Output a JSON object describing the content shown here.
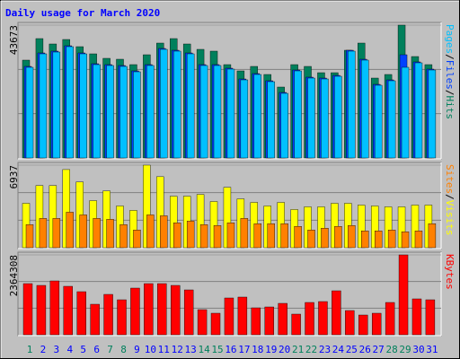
{
  "title": "Daily usage for March 2020",
  "chart_data": [
    {
      "type": "bar",
      "legend_separator": "/",
      "ylim": [
        0,
        43673
      ],
      "yticks": [
        43673
      ],
      "series": [
        {
          "name": "Hits",
          "color": "#00805c",
          "values": [
            32166,
            39248,
            37477,
            38953,
            36591,
            34231,
            32756,
            32461,
            30690,
            33936,
            37772,
            39248,
            37477,
            35707,
            35117,
            30690,
            28624,
            30100,
            27444,
            23313,
            30690,
            30100,
            28034,
            28034,
            35412,
            37772,
            26263,
            27444,
            43673,
            33346,
            30690
          ]
        },
        {
          "name": "Files",
          "color": "#0040ff",
          "values": [
            30100,
            34526,
            35117,
            36886,
            34526,
            30985,
            30690,
            30395,
            28624,
            30690,
            36002,
            35412,
            34526,
            30690,
            30690,
            29510,
            25968,
            27739,
            25378,
            21542,
            28919,
            26558,
            26263,
            27149,
            35412,
            32461,
            24198,
            25673,
            33936,
            31575,
            29214
          ]
        },
        {
          "name": "Pages",
          "color": "#00c0ff",
          "values": [
            29805,
            34231,
            34821,
            36591,
            34231,
            30690,
            30395,
            30100,
            28329,
            30395,
            35707,
            35117,
            34231,
            30395,
            30395,
            29214,
            25673,
            27444,
            25083,
            21247,
            28624,
            26263,
            25968,
            26854,
            35117,
            32166,
            23903,
            25378,
            29805,
            31280,
            28919
          ]
        }
      ]
    },
    {
      "type": "bar",
      "legend_separator": "/",
      "ylim": [
        0,
        6937
      ],
      "yticks": [
        6937
      ],
      "series": [
        {
          "name": "Visits",
          "color": "#ffff00",
          "values": [
            3730,
            5222,
            5222,
            6565,
            5520,
            3954,
            4774,
            3506,
            3133,
            6937,
            5968,
            4327,
            4327,
            4476,
            3879,
            5073,
            4103,
            3805,
            3506,
            3805,
            3208,
            3432,
            3432,
            3730,
            3730,
            3581,
            3506,
            3432,
            3432,
            3581,
            3581
          ]
        },
        {
          "name": "Sites",
          "color": "#ff8000",
          "values": [
            1940,
            2462,
            2462,
            2984,
            2760,
            2462,
            2387,
            1940,
            1492,
            2760,
            2686,
            2089,
            2238,
            1940,
            1865,
            2089,
            2462,
            2014,
            2014,
            2014,
            1790,
            1492,
            1641,
            1790,
            1865,
            1417,
            1417,
            1492,
            1343,
            1417,
            2014
          ]
        }
      ]
    },
    {
      "type": "bar",
      "ylim": [
        0,
        2364308
      ],
      "yticks": [
        2364308
      ],
      "categories": [
        "1",
        "2",
        "3",
        "4",
        "5",
        "6",
        "7",
        "8",
        "9",
        "10",
        "11",
        "12",
        "13",
        "14",
        "15",
        "16",
        "17",
        "18",
        "19",
        "20",
        "21",
        "22",
        "23",
        "24",
        "25",
        "26",
        "27",
        "28",
        "29",
        "30",
        "31"
      ],
      "category_colors": [
        "#00805c",
        "#0000ff",
        "#0000ff",
        "#0000ff",
        "#0000ff",
        "#0000ff",
        "#00805c",
        "#00805c",
        "#0000ff",
        "#0000ff",
        "#0000ff",
        "#0000ff",
        "#0000ff",
        "#00805c",
        "#00805c",
        "#0000ff",
        "#0000ff",
        "#0000ff",
        "#0000ff",
        "#0000ff",
        "#00805c",
        "#00805c",
        "#0000ff",
        "#0000ff",
        "#0000ff",
        "#0000ff",
        "#0000ff",
        "#00805c",
        "#00805c",
        "#0000ff",
        "#0000ff"
      ],
      "series": [
        {
          "name": "KBytes",
          "color": "#ff0000",
          "values": [
            1514205,
            1461075,
            1593900,
            1434510,
            1275120,
            903210,
            1195425,
            1036035,
            1381380,
            1514205,
            1514205,
            1461075,
            1328250,
            743820,
            637560,
            1089165,
            1115730,
            796950,
            823515,
            929775,
            610995,
            956340,
            982905,
            1301685,
            717255,
            584430,
            637560,
            956340,
            2364308,
            1062600,
            1036035
          ]
        }
      ]
    }
  ]
}
